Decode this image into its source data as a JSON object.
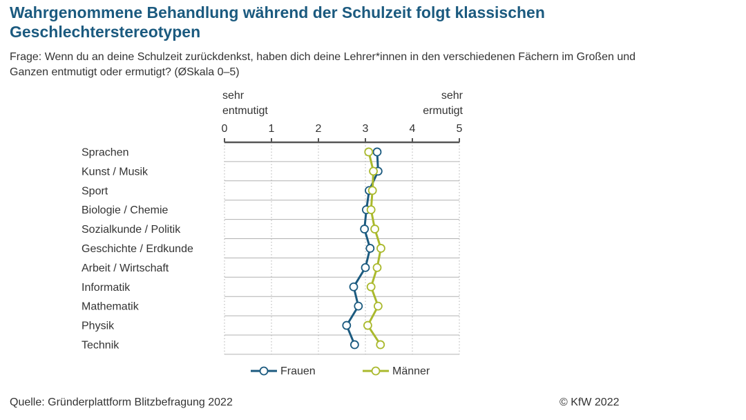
{
  "title": "Wahrgenommene Behandlung während der Schulzeit folgt klassischen Geschlechterstereotypen",
  "question": "Frage: Wenn du an deine Schulzeit zurückdenkst, haben dich deine Lehrer*innen in den verschiedenen Fächern im Großen und Ganzen entmutigt oder ermutigt? (ØSkala 0–5)",
  "source": "Quelle: Gründerplattform Blitzbefragung 2022",
  "copyright": "© KfW 2022",
  "colors": {
    "frauen": "#1b5a7f",
    "maenner": "#aab92d",
    "axis": "#555555",
    "grid": "#b0b0b0"
  },
  "chart_data": {
    "type": "line",
    "orientation": "horizontal",
    "scale_left_label": [
      "sehr",
      "entmutigt"
    ],
    "scale_right_label": [
      "sehr",
      "ermutigt"
    ],
    "xlim": [
      0,
      5
    ],
    "xticks": [
      "0",
      "1",
      "2",
      "3",
      "4",
      "5"
    ],
    "categories": [
      "Sprachen",
      "Kunst / Musik",
      "Sport",
      "Biologie / Chemie",
      "Sozialkunde / Politik",
      "Geschichte / Erdkunde",
      "Arbeit / Wirtschaft",
      "Informatik",
      "Mathematik",
      "Physik",
      "Technik"
    ],
    "series": [
      {
        "name": "Frauen",
        "values": [
          3.25,
          3.27,
          3.08,
          3.02,
          2.98,
          3.1,
          3.0,
          2.75,
          2.85,
          2.6,
          2.77
        ]
      },
      {
        "name": "Männer",
        "values": [
          3.07,
          3.17,
          3.15,
          3.12,
          3.2,
          3.33,
          3.25,
          3.12,
          3.27,
          3.05,
          3.32
        ]
      }
    ],
    "legend_position": "bottom",
    "grid": true
  }
}
